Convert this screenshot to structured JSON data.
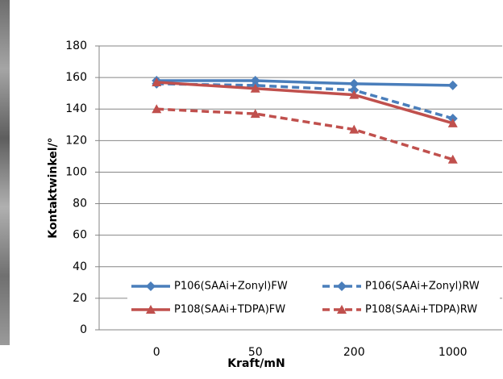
{
  "chart_data": {
    "type": "line",
    "x_label": "Kraft/mN",
    "y_label": "Kontaktwinkel/°",
    "categories": [
      "0",
      "50",
      "200",
      "1000"
    ],
    "series": [
      {
        "name": "P106(SAAi+Zonyl)FW",
        "color": "#4a7ebb",
        "marker": "diamond",
        "line_style": "solid",
        "values": [
          158,
          158,
          156,
          155
        ]
      },
      {
        "name": "P106(SAAi+Zonyl)RW",
        "color": "#4a7ebb",
        "marker": "diamond",
        "line_style": "dashed",
        "values": [
          156,
          155,
          152,
          134
        ]
      },
      {
        "name": "P108(SAAi+TDPA)FW",
        "color": "#c0504d",
        "marker": "triangle",
        "line_style": "solid",
        "values": [
          157,
          153,
          149,
          131
        ]
      },
      {
        "name": "P108(SAAi+TDPA)RW",
        "color": "#c0504d",
        "marker": "triangle",
        "line_style": "dashed",
        "values": [
          140,
          137,
          127,
          108
        ]
      }
    ],
    "ylim": [
      0,
      180
    ],
    "yticks": [
      0,
      20,
      40,
      60,
      80,
      100,
      120,
      140,
      160,
      180
    ],
    "grid": true
  }
}
